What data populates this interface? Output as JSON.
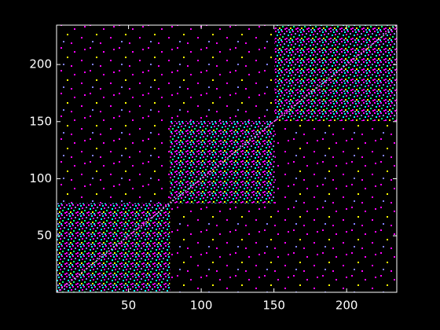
{
  "chart_data": {
    "type": "image",
    "xlim": [
      0.5,
      234.5
    ],
    "ylim": [
      0.5,
      234.5
    ],
    "xticks": [
      50,
      100,
      150,
      200
    ],
    "yticks": [
      50,
      100,
      150,
      200
    ],
    "blocks": [
      {
        "start": 0.5,
        "end": 78.5
      },
      {
        "start": 78.5,
        "end": 150.5
      },
      {
        "start": 150.5,
        "end": 234.5
      }
    ]
  }
}
